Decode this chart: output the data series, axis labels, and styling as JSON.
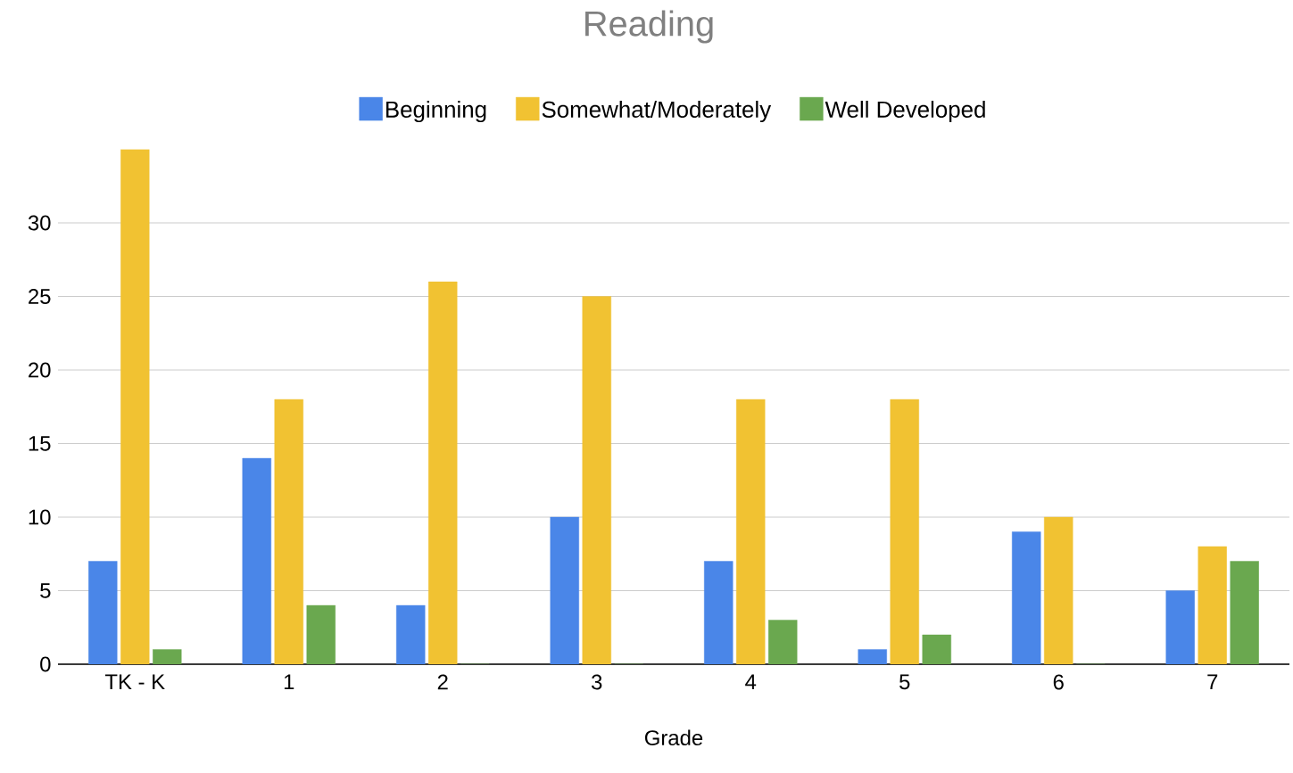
{
  "chart_data": {
    "type": "bar",
    "title": "Reading",
    "xlabel": "Grade",
    "categories": [
      "TK - K",
      "1",
      "2",
      "3",
      "4",
      "5",
      "6",
      "7"
    ],
    "series": [
      {
        "name": "Beginning",
        "color": "#4a86e8",
        "values": [
          7,
          14,
          4,
          10,
          7,
          1,
          9,
          5
        ]
      },
      {
        "name": "Somewhat/Moderately",
        "color": "#f1c232",
        "values": [
          35,
          18,
          26,
          25,
          18,
          18,
          10,
          8
        ]
      },
      {
        "name": "Well Developed",
        "color": "#6aa84f",
        "values": [
          1,
          4,
          0,
          0,
          3,
          2,
          0,
          7
        ]
      }
    ],
    "ylim": [
      0,
      35
    ],
    "yticks": [
      0,
      5,
      10,
      15,
      20,
      25,
      30
    ],
    "grid": "y",
    "legend": "top"
  }
}
